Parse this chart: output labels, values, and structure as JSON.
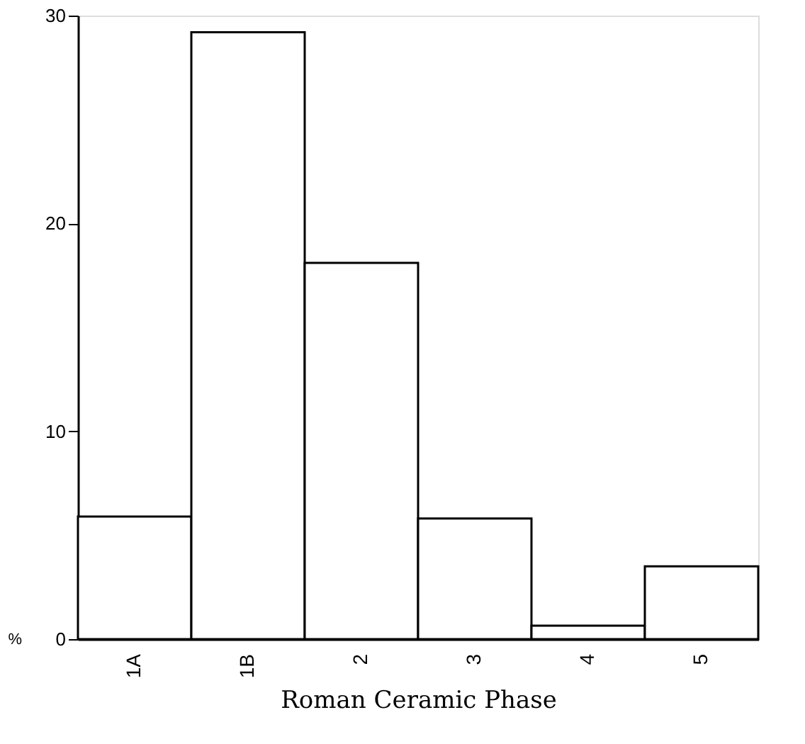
{
  "chart_data": {
    "type": "bar",
    "xlabel": "Roman Ceramic Phase",
    "ylabel": "%",
    "categories": [
      "1A",
      "1B",
      "2",
      "3",
      "4",
      "5"
    ],
    "values": [
      5.9,
      29.2,
      18.1,
      5.8,
      0.65,
      3.5
    ],
    "color": "#ffffff",
    "ylim": [
      0,
      30
    ],
    "yticks": [
      0,
      10,
      20,
      30
    ],
    "grid": false
  }
}
